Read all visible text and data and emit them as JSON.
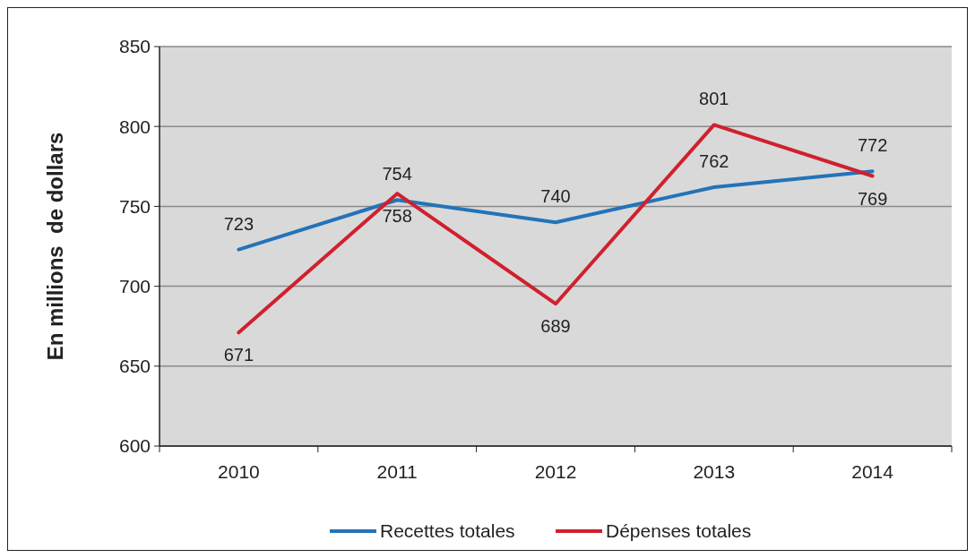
{
  "chart_data": {
    "type": "line",
    "ylabel": "En millions  de dollars",
    "categories": [
      "2010",
      "2011",
      "2012",
      "2013",
      "2014"
    ],
    "series": [
      {
        "name": "Recettes totales",
        "color": "#2373b9",
        "values": [
          723,
          754,
          740,
          762,
          772
        ]
      },
      {
        "name": "Dépenses totales",
        "color": "#d0202e",
        "values": [
          671,
          758,
          689,
          801,
          769
        ]
      }
    ],
    "ylim": [
      600,
      850
    ],
    "yticks": [
      600,
      650,
      700,
      750,
      800,
      850
    ],
    "grid": "y",
    "data_labels": true,
    "legend": "bottom",
    "marker": "none",
    "line_style": "solid"
  }
}
